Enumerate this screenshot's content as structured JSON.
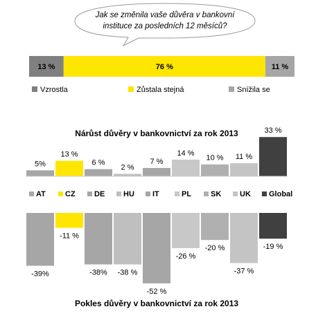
{
  "question": [
    "Jak se změnila vaše důvěra v bankovní",
    "instituce za posledních 12 měsíců?"
  ],
  "chart_data": [
    {
      "type": "stacked_bar",
      "series": [
        {
          "name": "Vzrostla",
          "color": "#808080",
          "values": [
            13
          ],
          "value_labels": [
            "13 %"
          ]
        },
        {
          "name": "Zůstala stejná",
          "color": "#ffe600",
          "values": [
            76
          ],
          "value_labels": [
            "76 %"
          ]
        },
        {
          "name": "Snížila se",
          "color": "#a6a6a6",
          "values": [
            11
          ],
          "value_labels": [
            "11 %"
          ]
        }
      ]
    },
    {
      "type": "bar",
      "title": "Nárůst důvěry v bankovnictví za rok 2013",
      "categories": [
        "AT",
        "CZ",
        "DE",
        "HU",
        "IT",
        "PL",
        "SK",
        "UK",
        "Global"
      ],
      "colors": [
        "#a6a6a6",
        "#ffe600",
        "#a6a6a6",
        "#bfbfbf",
        "#a6a6a6",
        "#c8c8c8",
        "#b0b0b0",
        "#c4c4c4",
        "#404040"
      ],
      "values": [
        5,
        13,
        6,
        2,
        7,
        14,
        10,
        11,
        33
      ],
      "value_labels": [
        "5%",
        "13 %",
        "6 %",
        "2 %",
        "7 %",
        "14 %",
        "10 %",
        "11 %",
        "33 %"
      ]
    },
    {
      "type": "bar",
      "title": "Pokles důvěry v bankovnictví za rok 2013",
      "colors": [
        "#a6a6a6",
        "#ffe600",
        "#a6a6a6",
        "#bfbfbf",
        "#a6a6a6",
        "#c8c8c8",
        "#b0b0b0",
        "#c4c4c4",
        "#404040"
      ],
      "values": [
        -39,
        -11,
        -38,
        -38,
        -52,
        -26,
        -20,
        -37,
        -19
      ],
      "value_labels": [
        "-39%",
        "-11 %",
        "-38%",
        "-38 %",
        "-52 %",
        "-26 %",
        "-20 %",
        "-37 %",
        "-19 %"
      ]
    }
  ]
}
